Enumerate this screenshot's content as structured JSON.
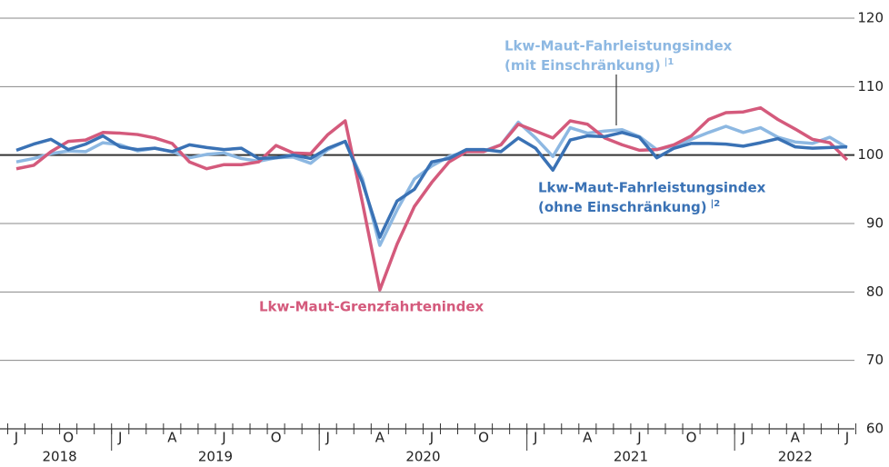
{
  "chart_data": {
    "type": "line",
    "categories": [
      "J",
      null,
      null,
      "O",
      null,
      null,
      "J",
      null,
      null,
      "A",
      null,
      null,
      "J",
      null,
      null,
      "O",
      null,
      null,
      "J",
      null,
      null,
      "A",
      null,
      null,
      "J",
      null,
      null,
      "O",
      null,
      null,
      "J",
      null,
      null,
      "A",
      null,
      null,
      "J",
      null,
      null,
      "O",
      null,
      null,
      "J",
      null,
      null,
      "A",
      null,
      null,
      "J"
    ],
    "years": [
      "2018",
      "2019",
      "2020",
      "2021",
      "2022"
    ],
    "series": [
      {
        "name": "Lkw-Maut-Fahrleistungsindex (mit Einschränkung)",
        "footnote": "1",
        "color": "#8db8e2",
        "values": [
          99,
          99.5,
          100.2,
          100.6,
          100.5,
          101.8,
          101.5,
          100.6,
          101,
          100.5,
          99.6,
          100.1,
          100.3,
          99.5,
          99.1,
          99.6,
          99.7,
          98.8,
          100.8,
          102,
          96.5,
          86.8,
          92,
          96.5,
          98.4,
          99.8,
          100.5,
          100.6,
          101.5,
          104.8,
          102.5,
          99.8,
          104,
          103.2,
          103.5,
          103.7,
          102.7,
          100.8,
          101.3,
          102.3,
          103.3,
          104.2,
          103.3,
          104,
          102.6,
          101.9,
          101.7,
          102.6,
          101.1
        ]
      },
      {
        "name": "Lkw-Maut-Grenzfahrtenindex",
        "color": "#d45a7c",
        "values": [
          98,
          98.5,
          100.5,
          102,
          102.2,
          103.3,
          103.2,
          103,
          102.5,
          101.7,
          99,
          98,
          98.6,
          98.6,
          99,
          101.4,
          100.3,
          100.2,
          103,
          105,
          93,
          80.3,
          87,
          92.5,
          96,
          99,
          100.5,
          100.5,
          101.5,
          104.5,
          103.5,
          102.5,
          105,
          104.5,
          102.5,
          101.5,
          100.7,
          100.8,
          101.5,
          102.8,
          105.2,
          106.2,
          106.3,
          106.9,
          105.2,
          103.8,
          102.3,
          101.8,
          99.3
        ]
      },
      {
        "name": "Lkw-Maut-Fahrleistungsindex (ohne Einschränkung)",
        "footnote": "2",
        "color": "#3a72b5",
        "values": [
          100.7,
          101.6,
          102.3,
          100.8,
          101.6,
          102.8,
          101.2,
          100.8,
          101,
          100.5,
          101.5,
          101.1,
          100.8,
          101,
          99.5,
          99.6,
          100,
          99.5,
          101,
          102,
          96,
          88,
          93.3,
          95,
          99,
          99.5,
          100.8,
          100.8,
          100.5,
          102.5,
          101,
          97.8,
          102.2,
          102.8,
          102.7,
          103.3,
          102.6,
          99.6,
          101,
          101.7,
          101.7,
          101.6,
          101.3,
          101.8,
          102.4,
          101.2,
          101,
          101.1,
          101.2
        ]
      }
    ],
    "annotations": [
      {
        "lines": [
          "Lkw-Maut-Fahrleistungsindex",
          "(mit Einschränkung)"
        ],
        "mark": "|1",
        "color": "#8db8e2"
      },
      {
        "lines": [
          "Lkw-Maut-Grenzfahrtenindex"
        ],
        "color": "#d45a7c"
      },
      {
        "lines": [
          "Lkw-Maut-Fahrleistungsindex",
          "(ohne Einschränkung)"
        ],
        "mark": "|2",
        "color": "#3a72b5"
      }
    ],
    "ylim": [
      60,
      120
    ],
    "yticks": [
      60,
      70,
      80,
      90,
      100,
      110,
      120
    ],
    "reference": 100,
    "grid": true
  }
}
